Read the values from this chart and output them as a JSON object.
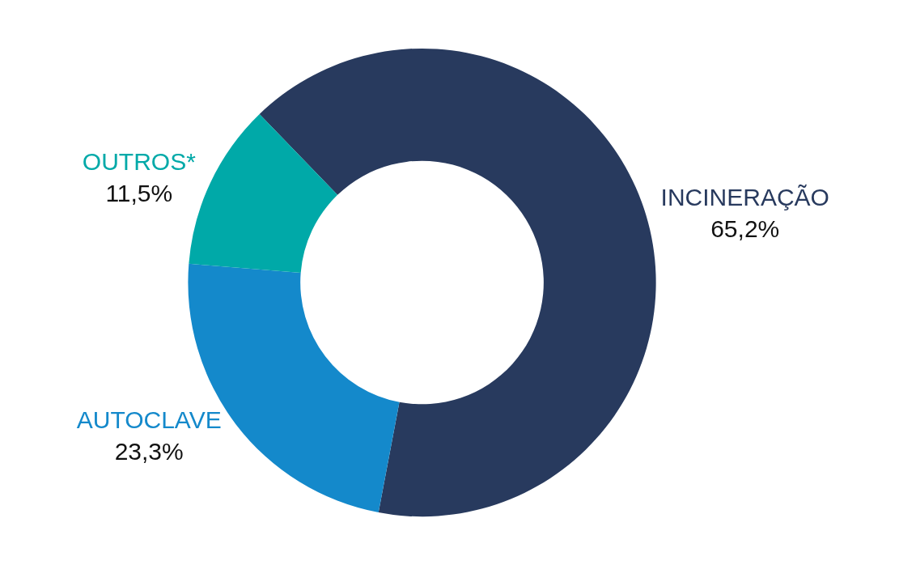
{
  "chart_data": {
    "type": "donut",
    "categories": [
      "INCINERAÇÃO",
      "AUTOCLAVE",
      "OUTROS*"
    ],
    "values": [
      65.2,
      23.3,
      11.5
    ],
    "colors": [
      "#283a5e",
      "#1489cb",
      "#00a9a8"
    ],
    "value_labels": [
      "65,2%",
      "23,3%",
      "11,5%"
    ],
    "legend": false
  }
}
